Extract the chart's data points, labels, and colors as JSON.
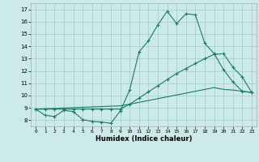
{
  "xlabel": "Humidex (Indice chaleur)",
  "background_color": "#cceae7",
  "grid_color": "#aacfcc",
  "line_color": "#1a7a6e",
  "xlim": [
    -0.5,
    23.5
  ],
  "ylim": [
    7.5,
    17.5
  ],
  "xticks": [
    0,
    1,
    2,
    3,
    4,
    5,
    6,
    7,
    8,
    9,
    10,
    11,
    12,
    13,
    14,
    15,
    16,
    17,
    18,
    19,
    20,
    21,
    22,
    23
  ],
  "yticks": [
    8,
    9,
    10,
    11,
    12,
    13,
    14,
    15,
    16,
    17
  ],
  "line1_x": [
    0,
    1,
    2,
    3,
    4,
    5,
    6,
    7,
    8,
    9,
    10,
    11,
    12,
    13,
    14,
    15,
    16,
    17,
    18,
    19,
    20,
    21,
    22,
    23
  ],
  "line1_y": [
    8.9,
    8.4,
    8.3,
    8.8,
    8.7,
    8.05,
    7.9,
    7.85,
    7.75,
    8.75,
    10.45,
    13.55,
    14.45,
    15.75,
    16.85,
    15.85,
    16.65,
    16.55,
    14.25,
    13.4,
    12.1,
    11.1,
    10.35,
    10.25
  ],
  "line2_x": [
    0,
    1,
    2,
    3,
    4,
    5,
    6,
    7,
    8,
    9,
    10,
    11,
    12,
    13,
    14,
    15,
    16,
    17,
    18,
    19,
    20,
    21,
    22,
    23
  ],
  "line2_y": [
    8.9,
    8.9,
    8.9,
    8.9,
    8.9,
    8.9,
    8.9,
    8.9,
    8.9,
    8.9,
    9.3,
    9.8,
    10.3,
    10.8,
    11.3,
    11.8,
    12.2,
    12.6,
    13.0,
    13.35,
    13.4,
    12.3,
    11.5,
    10.25
  ],
  "line3_x": [
    0,
    1,
    2,
    3,
    4,
    5,
    6,
    7,
    8,
    9,
    10,
    11,
    12,
    13,
    14,
    15,
    16,
    17,
    18,
    19,
    20,
    21,
    22,
    23
  ],
  "line3_y": [
    8.9,
    8.93,
    8.96,
    8.99,
    9.02,
    9.05,
    9.08,
    9.11,
    9.14,
    9.17,
    9.3,
    9.45,
    9.6,
    9.75,
    9.9,
    10.05,
    10.2,
    10.35,
    10.5,
    10.65,
    10.5,
    10.45,
    10.35,
    10.25
  ]
}
